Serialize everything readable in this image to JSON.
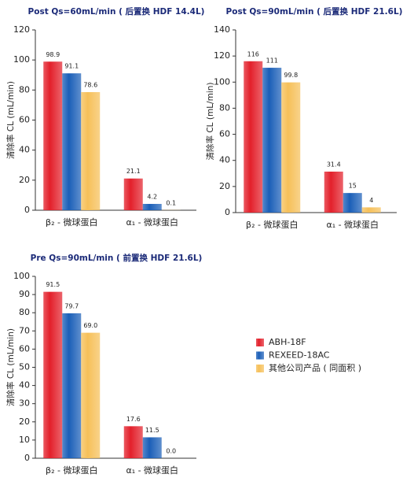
{
  "chart_data": [
    {
      "type": "bar",
      "title": "Post Qs=60mL/min ( 后置换 HDF 14.4L)",
      "y_label": "清除率  CL (mL/min)",
      "categories": [
        "β₂ - 微球蛋白",
        "α₁ - 微球蛋白"
      ],
      "series": [
        {
          "values": [
            98.9,
            21.1
          ]
        },
        {
          "values": [
            91.1,
            4.2
          ]
        },
        {
          "values": [
            78.6,
            0.1
          ]
        }
      ],
      "ylim": [
        0,
        120
      ],
      "yticks": [
        0,
        20,
        40,
        60,
        80,
        100,
        120
      ]
    },
    {
      "type": "bar",
      "title": "Post Qs=90mL/min ( 后置换 HDF 21.6L)",
      "y_label": "清除率  CL (mL/min)",
      "categories": [
        "β₂ - 微球蛋白",
        "α₁ - 微球蛋白"
      ],
      "series": [
        {
          "values": [
            116,
            31.4
          ]
        },
        {
          "values": [
            111,
            15
          ]
        },
        {
          "values": [
            99.8,
            4
          ]
        }
      ],
      "ylim": [
        0,
        140
      ],
      "yticks": [
        0,
        20,
        40,
        60,
        80,
        100,
        120,
        140
      ]
    },
    {
      "type": "bar",
      "title": "Pre Qs=90mL/min ( 前置换 HDF 21.6L)",
      "y_label": "清除率  CL (mL/min)",
      "categories": [
        "β₂ - 微球蛋白",
        "α₁ - 微球蛋白"
      ],
      "series": [
        {
          "values": [
            91.5,
            17.6
          ]
        },
        {
          "values": [
            79.7,
            11.5
          ]
        },
        {
          "values": [
            69.0,
            0.0
          ],
          "value_labels": [
            "69.0",
            "0.0"
          ]
        }
      ],
      "ylim": [
        0,
        100
      ],
      "yticks": [
        0,
        10,
        20,
        30,
        40,
        50,
        60,
        70,
        80,
        90,
        100
      ]
    }
  ],
  "legend": [
    {
      "name": "ABH-18F",
      "color": "#e3202b"
    },
    {
      "name": "REXEED-18AC",
      "color": "#1b5fb8"
    },
    {
      "name": "其他公司产品 ( 同面积 )",
      "color": "#f6c059"
    }
  ]
}
